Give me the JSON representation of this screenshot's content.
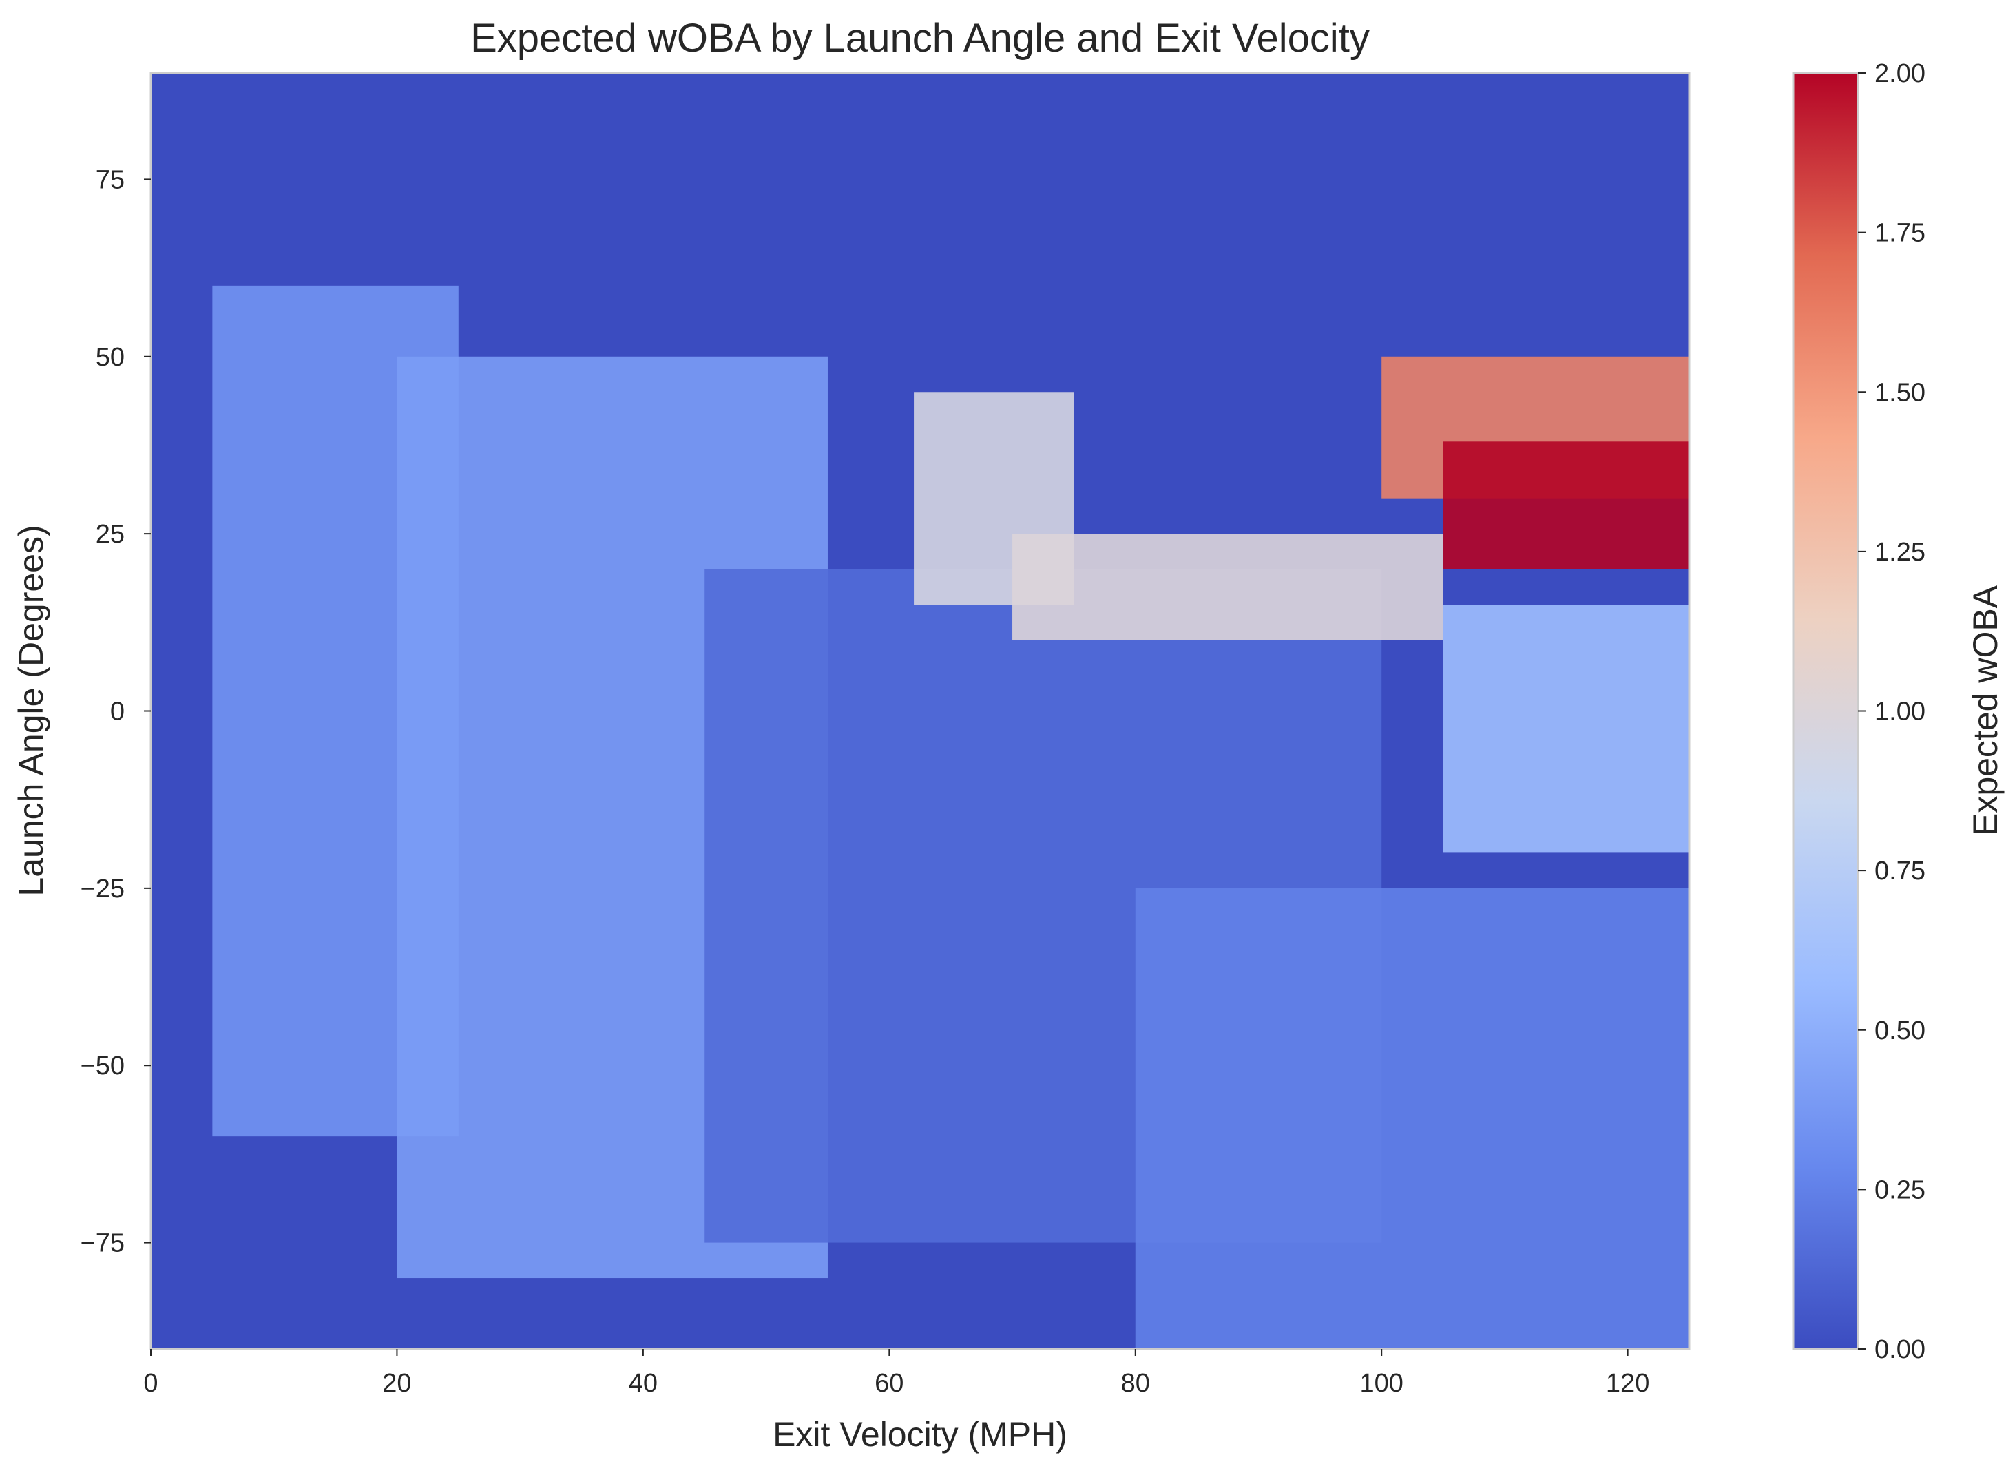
{
  "chart_data": {
    "type": "heatmap",
    "title": "Expected wOBA by Launch Angle and Exit Velocity",
    "xlabel": "Exit Velocity (MPH)",
    "ylabel": "Launch Angle (Degrees)",
    "xlim": [
      0,
      125
    ],
    "ylim": [
      -90,
      90
    ],
    "xticks": [
      0,
      20,
      40,
      60,
      80,
      100,
      120
    ],
    "xtick_labels": [
      "0",
      "20",
      "40",
      "60",
      "80",
      "100",
      "120"
    ],
    "yticks": [
      -75,
      -50,
      -25,
      0,
      25,
      50,
      75
    ],
    "ytick_labels": [
      "−75",
      "−50",
      "−25",
      "0",
      "25",
      "50",
      "75"
    ],
    "grid": false,
    "colormap": "coolwarm",
    "colormap_stops": [
      "#3b4cc0",
      "#6788ee",
      "#9abbff",
      "#c9d7f0",
      "#edd1c2",
      "#f7a889",
      "#e26952",
      "#b40426"
    ],
    "colorbar": {
      "label": "Expected wOBA",
      "range": [
        0,
        2
      ],
      "ticks": [
        0,
        0.25,
        0.5,
        0.75,
        1.0,
        1.25,
        1.5,
        1.75,
        2.0
      ],
      "tick_labels": [
        "0.00",
        "0.25",
        "0.50",
        "0.75",
        "1.00",
        "1.25",
        "1.50",
        "1.75",
        "2.00"
      ]
    },
    "background_value": 0.0,
    "regions": [
      {
        "x": [
          5,
          25
        ],
        "y": [
          -60,
          60
        ],
        "value": 0.35
      },
      {
        "x": [
          20,
          55
        ],
        "y": [
          -80,
          50
        ],
        "value": 0.4
      },
      {
        "x": [
          45,
          100
        ],
        "y": [
          -75,
          20
        ],
        "value": 0.15
      },
      {
        "x": [
          62,
          75
        ],
        "y": [
          15,
          45
        ],
        "value": 0.95
      },
      {
        "x": [
          70,
          105
        ],
        "y": [
          10,
          25
        ],
        "value": 1.0
      },
      {
        "x": [
          100,
          125
        ],
        "y": [
          30,
          50
        ],
        "value": 1.6
      },
      {
        "x": [
          105,
          125
        ],
        "y": [
          20,
          38
        ],
        "value": 2.0
      },
      {
        "x": [
          105,
          125
        ],
        "y": [
          -20,
          15
        ],
        "value": 0.6
      },
      {
        "x": [
          80,
          125
        ],
        "y": [
          -90,
          -25
        ],
        "value": 0.25
      }
    ]
  }
}
